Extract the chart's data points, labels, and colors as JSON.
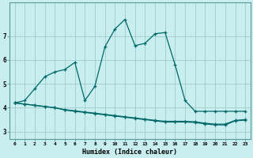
{
  "xlabel": "Humidex (Indice chaleur)",
  "xlim": [
    -0.5,
    23.5
  ],
  "ylim": [
    2.7,
    8.4
  ],
  "background_color": "#c8eef0",
  "grid_color": "#a0cccc",
  "line_color": "#006868",
  "line1_x": [
    0,
    1,
    2,
    3,
    4,
    5,
    6,
    7,
    8,
    9,
    10,
    11,
    12,
    13,
    14,
    15,
    16,
    17,
    18,
    19,
    20,
    21,
    22,
    23
  ],
  "line1_y": [
    4.2,
    4.3,
    4.8,
    5.3,
    5.5,
    5.6,
    5.9,
    4.3,
    4.9,
    6.55,
    7.3,
    7.7,
    6.6,
    6.7,
    7.1,
    7.15,
    5.8,
    4.3,
    3.85,
    3.85,
    3.85,
    3.85,
    3.85,
    3.85
  ],
  "line2_x": [
    0,
    1,
    2,
    3,
    4,
    5,
    6,
    7,
    8,
    9,
    10,
    11,
    12,
    13,
    14,
    15,
    16,
    17,
    18,
    19,
    20,
    21,
    22,
    23
  ],
  "line2_y": [
    4.2,
    4.15,
    4.1,
    4.05,
    4.0,
    3.9,
    3.85,
    3.8,
    3.75,
    3.7,
    3.65,
    3.6,
    3.55,
    3.5,
    3.45,
    3.4,
    3.4,
    3.4,
    3.38,
    3.32,
    3.28,
    3.28,
    3.45,
    3.48
  ],
  "line3_x": [
    0,
    1,
    2,
    3,
    4,
    5,
    6,
    7,
    8,
    9,
    10,
    11,
    12,
    13,
    14,
    15,
    16,
    17,
    18,
    19,
    20,
    21,
    22,
    23
  ],
  "line3_y": [
    4.2,
    4.15,
    4.1,
    4.05,
    4.0,
    3.92,
    3.87,
    3.82,
    3.77,
    3.72,
    3.67,
    3.62,
    3.57,
    3.52,
    3.47,
    3.43,
    3.43,
    3.43,
    3.41,
    3.35,
    3.31,
    3.31,
    3.47,
    3.5
  ],
  "yticks": [
    3,
    4,
    5,
    6,
    7
  ],
  "xticks": [
    0,
    1,
    2,
    3,
    4,
    5,
    6,
    7,
    8,
    9,
    10,
    11,
    12,
    13,
    14,
    15,
    16,
    17,
    18,
    19,
    20,
    21,
    22,
    23
  ]
}
